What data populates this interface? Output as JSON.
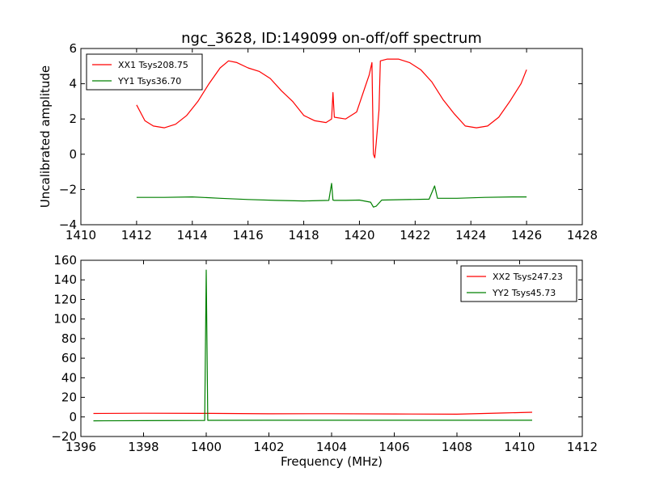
{
  "chart_data": [
    {
      "type": "line",
      "title": "ngc_3628, ID:149099 on-off/off spectrum",
      "xlabel": "",
      "ylabel": "Uncalibrated amplitude",
      "xlim": [
        1410,
        1428
      ],
      "ylim": [
        -4,
        6
      ],
      "xticks": [
        1410,
        1412,
        1414,
        1416,
        1418,
        1420,
        1422,
        1424,
        1426,
        1428
      ],
      "yticks": [
        -4,
        -2,
        0,
        2,
        4,
        6
      ],
      "grid": false,
      "legend_position": "top-left",
      "series": [
        {
          "name": "XX1 Tsys208.75",
          "color": "#ff0000",
          "x": [
            1412.0,
            1412.3,
            1412.6,
            1413.0,
            1413.4,
            1413.8,
            1414.2,
            1414.6,
            1415.0,
            1415.3,
            1415.6,
            1416.0,
            1416.4,
            1416.8,
            1417.2,
            1417.6,
            1418.0,
            1418.4,
            1418.8,
            1419.0,
            1419.05,
            1419.1,
            1419.5,
            1419.9,
            1420.2,
            1420.35,
            1420.45,
            1420.5,
            1420.55,
            1420.6,
            1420.7,
            1420.75,
            1421.0,
            1421.4,
            1421.8,
            1422.2,
            1422.6,
            1423.0,
            1423.4,
            1423.8,
            1424.2,
            1424.6,
            1425.0,
            1425.4,
            1425.8,
            1426.0
          ],
          "y": [
            2.8,
            1.9,
            1.6,
            1.5,
            1.7,
            2.2,
            3.0,
            4.0,
            4.9,
            5.3,
            5.2,
            4.9,
            4.7,
            4.3,
            3.6,
            3.0,
            2.2,
            1.9,
            1.8,
            2.0,
            3.5,
            2.1,
            2.0,
            2.4,
            3.8,
            4.5,
            5.2,
            0.0,
            -0.2,
            0.6,
            2.5,
            5.3,
            5.4,
            5.4,
            5.2,
            4.8,
            4.1,
            3.1,
            2.3,
            1.6,
            1.5,
            1.6,
            2.1,
            3.0,
            4.0,
            4.8
          ]
        },
        {
          "name": "YY1 Tsys36.70",
          "color": "#008000",
          "x": [
            1412.0,
            1413.0,
            1414.0,
            1415.0,
            1416.0,
            1417.0,
            1418.0,
            1418.9,
            1419.0,
            1419.05,
            1419.1,
            1419.5,
            1420.0,
            1420.4,
            1420.5,
            1420.6,
            1420.8,
            1421.5,
            1422.5,
            1422.7,
            1422.8,
            1423.5,
            1424.5,
            1425.5,
            1426.0
          ],
          "y": [
            -2.45,
            -2.45,
            -2.42,
            -2.5,
            -2.57,
            -2.62,
            -2.65,
            -2.62,
            -1.65,
            -2.6,
            -2.62,
            -2.62,
            -2.6,
            -2.72,
            -3.0,
            -2.95,
            -2.6,
            -2.58,
            -2.55,
            -1.8,
            -2.5,
            -2.5,
            -2.45,
            -2.42,
            -2.42
          ]
        }
      ]
    },
    {
      "type": "line",
      "title": "",
      "xlabel": "Frequency (MHz)",
      "ylabel": "",
      "xlim": [
        1396,
        1412
      ],
      "ylim": [
        -20,
        160
      ],
      "xticks": [
        1396,
        1398,
        1400,
        1402,
        1404,
        1406,
        1408,
        1410,
        1412
      ],
      "yticks": [
        -20,
        0,
        20,
        40,
        60,
        80,
        100,
        120,
        140,
        160
      ],
      "grid": false,
      "legend_position": "top-right",
      "series": [
        {
          "name": "XX2 Tsys247.23",
          "color": "#ff0000",
          "x": [
            1396.4,
            1398.0,
            1399.9,
            1400.1,
            1402.0,
            1404.0,
            1406.0,
            1408.0,
            1409.5,
            1410.4
          ],
          "y": [
            3.5,
            3.8,
            3.6,
            3.6,
            3.2,
            3.3,
            3.0,
            2.8,
            4.0,
            4.8
          ]
        },
        {
          "name": "YY2 Tsys45.73",
          "color": "#008000",
          "x": [
            1396.4,
            1398.0,
            1399.95,
            1400.0,
            1400.05,
            1402.0,
            1404.0,
            1406.0,
            1408.0,
            1410.4
          ],
          "y": [
            -4.0,
            -3.8,
            -3.6,
            150.0,
            -3.5,
            -3.4,
            -3.4,
            -3.4,
            -3.4,
            -3.4
          ]
        }
      ]
    }
  ]
}
